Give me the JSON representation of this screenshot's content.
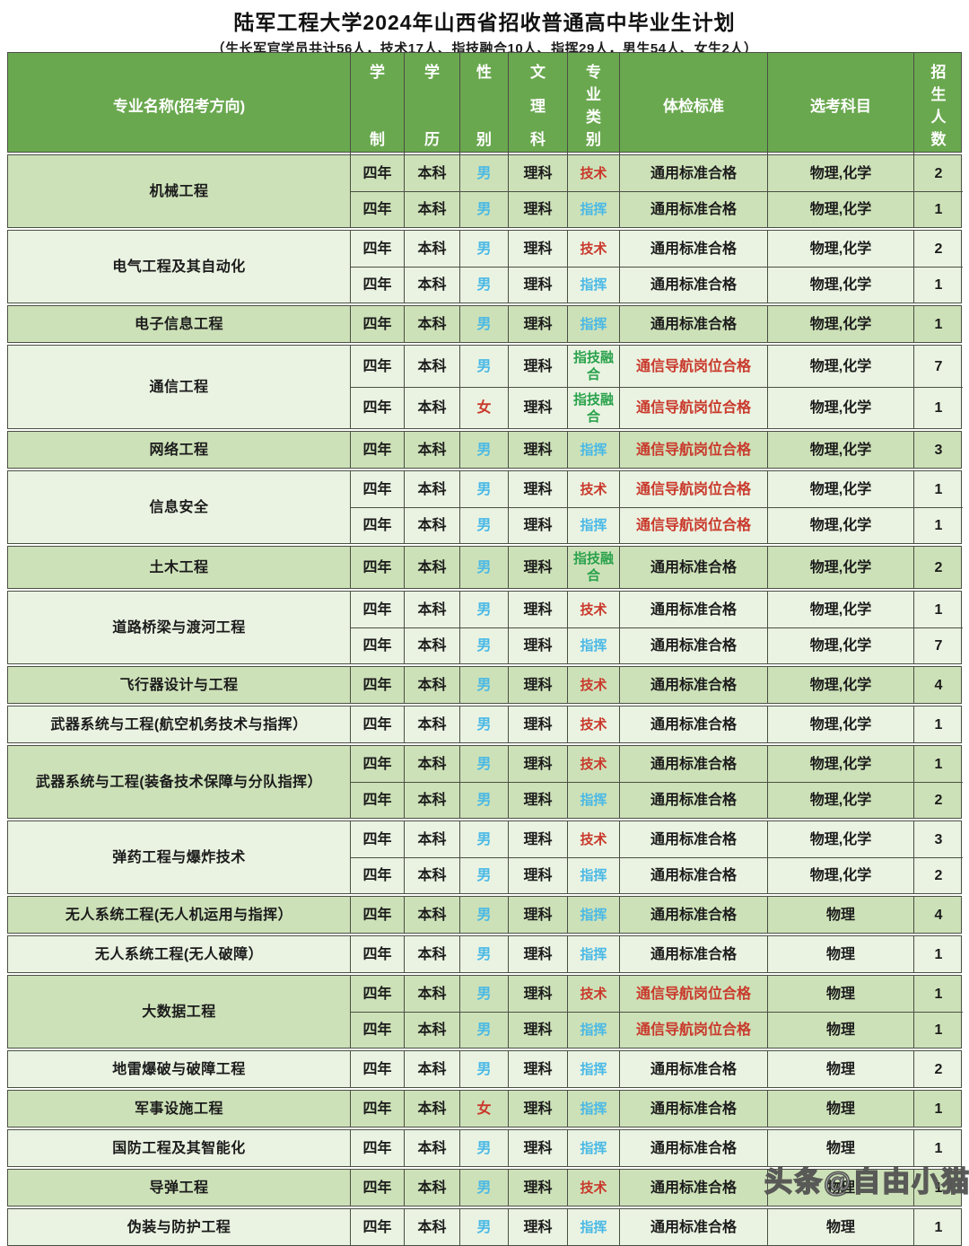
{
  "title": "陆军工程大学2024年山西省招收普通高中毕业生计划",
  "subtitle": "（生长军官学员共计56人，技术17人、指技融合10人、指挥29人，男生54人、女生2人）",
  "watermark": "头条@自由小猫",
  "header": {
    "major": "专业名称(招考方向)",
    "duration": "学制",
    "degree": "学历",
    "gender": "性别",
    "track": "文理科",
    "category": "专业类别",
    "medical": "体检标准",
    "subjects": "选考科目",
    "count": "招生人数"
  },
  "colors": {
    "header_bg": "#6aa84f",
    "row_dark": "#cde1b8",
    "row_light": "#eaf3e2",
    "male_blue": "#4ab9e6",
    "female_red": "#c9392c",
    "tech_red": "#c9392c",
    "command_blue": "#4ab9e6",
    "fusion_green": "#2aa24c",
    "special_medical_red": "#c9392c"
  },
  "groups": [
    {
      "major": "机械工程",
      "rows": [
        {
          "duration": "四年",
          "degree": "本科",
          "gender": "男",
          "track": "理科",
          "category": "技术",
          "medical": "通用标准合格",
          "subjects": "物理,化学",
          "count": "2"
        },
        {
          "duration": "四年",
          "degree": "本科",
          "gender": "男",
          "track": "理科",
          "category": "指挥",
          "medical": "通用标准合格",
          "subjects": "物理,化学",
          "count": "1"
        }
      ]
    },
    {
      "major": "电气工程及其自动化",
      "rows": [
        {
          "duration": "四年",
          "degree": "本科",
          "gender": "男",
          "track": "理科",
          "category": "技术",
          "medical": "通用标准合格",
          "subjects": "物理,化学",
          "count": "2"
        },
        {
          "duration": "四年",
          "degree": "本科",
          "gender": "男",
          "track": "理科",
          "category": "指挥",
          "medical": "通用标准合格",
          "subjects": "物理,化学",
          "count": "1"
        }
      ]
    },
    {
      "major": "电子信息工程",
      "rows": [
        {
          "duration": "四年",
          "degree": "本科",
          "gender": "男",
          "track": "理科",
          "category": "指挥",
          "medical": "通用标准合格",
          "subjects": "物理,化学",
          "count": "1"
        }
      ]
    },
    {
      "major": "通信工程",
      "rows": [
        {
          "duration": "四年",
          "degree": "本科",
          "gender": "男",
          "track": "理科",
          "category": "指技融合",
          "medical": "通信导航岗位合格",
          "subjects": "物理,化学",
          "count": "7"
        },
        {
          "duration": "四年",
          "degree": "本科",
          "gender": "女",
          "track": "理科",
          "category": "指技融合",
          "medical": "通信导航岗位合格",
          "subjects": "物理,化学",
          "count": "1"
        }
      ]
    },
    {
      "major": "网络工程",
      "rows": [
        {
          "duration": "四年",
          "degree": "本科",
          "gender": "男",
          "track": "理科",
          "category": "指挥",
          "medical": "通信导航岗位合格",
          "subjects": "物理,化学",
          "count": "3"
        }
      ]
    },
    {
      "major": "信息安全",
      "rows": [
        {
          "duration": "四年",
          "degree": "本科",
          "gender": "男",
          "track": "理科",
          "category": "技术",
          "medical": "通信导航岗位合格",
          "subjects": "物理,化学",
          "count": "1"
        },
        {
          "duration": "四年",
          "degree": "本科",
          "gender": "男",
          "track": "理科",
          "category": "指挥",
          "medical": "通信导航岗位合格",
          "subjects": "物理,化学",
          "count": "1"
        }
      ]
    },
    {
      "major": "土木工程",
      "rows": [
        {
          "duration": "四年",
          "degree": "本科",
          "gender": "男",
          "track": "理科",
          "category": "指技融合",
          "medical": "通用标准合格",
          "subjects": "物理,化学",
          "count": "2"
        }
      ]
    },
    {
      "major": "道路桥梁与渡河工程",
      "rows": [
        {
          "duration": "四年",
          "degree": "本科",
          "gender": "男",
          "track": "理科",
          "category": "技术",
          "medical": "通用标准合格",
          "subjects": "物理,化学",
          "count": "1"
        },
        {
          "duration": "四年",
          "degree": "本科",
          "gender": "男",
          "track": "理科",
          "category": "指挥",
          "medical": "通用标准合格",
          "subjects": "物理,化学",
          "count": "7"
        }
      ]
    },
    {
      "major": "飞行器设计与工程",
      "rows": [
        {
          "duration": "四年",
          "degree": "本科",
          "gender": "男",
          "track": "理科",
          "category": "技术",
          "medical": "通用标准合格",
          "subjects": "物理,化学",
          "count": "4"
        }
      ]
    },
    {
      "major": "武器系统与工程(航空机务技术与指挥）",
      "rows": [
        {
          "duration": "四年",
          "degree": "本科",
          "gender": "男",
          "track": "理科",
          "category": "技术",
          "medical": "通用标准合格",
          "subjects": "物理,化学",
          "count": "1"
        }
      ]
    },
    {
      "major": "武器系统与工程(装备技术保障与分队指挥）",
      "rows": [
        {
          "duration": "四年",
          "degree": "本科",
          "gender": "男",
          "track": "理科",
          "category": "技术",
          "medical": "通用标准合格",
          "subjects": "物理,化学",
          "count": "1"
        },
        {
          "duration": "四年",
          "degree": "本科",
          "gender": "男",
          "track": "理科",
          "category": "指挥",
          "medical": "通用标准合格",
          "subjects": "物理,化学",
          "count": "2"
        }
      ]
    },
    {
      "major": "弹药工程与爆炸技术",
      "rows": [
        {
          "duration": "四年",
          "degree": "本科",
          "gender": "男",
          "track": "理科",
          "category": "技术",
          "medical": "通用标准合格",
          "subjects": "物理,化学",
          "count": "3"
        },
        {
          "duration": "四年",
          "degree": "本科",
          "gender": "男",
          "track": "理科",
          "category": "指挥",
          "medical": "通用标准合格",
          "subjects": "物理,化学",
          "count": "2"
        }
      ]
    },
    {
      "major": "无人系统工程(无人机运用与指挥）",
      "rows": [
        {
          "duration": "四年",
          "degree": "本科",
          "gender": "男",
          "track": "理科",
          "category": "指挥",
          "medical": "通用标准合格",
          "subjects": "物理",
          "count": "4"
        }
      ]
    },
    {
      "major": "无人系统工程(无人破障）",
      "rows": [
        {
          "duration": "四年",
          "degree": "本科",
          "gender": "男",
          "track": "理科",
          "category": "指挥",
          "medical": "通用标准合格",
          "subjects": "物理",
          "count": "1"
        }
      ]
    },
    {
      "major": "大数据工程",
      "rows": [
        {
          "duration": "四年",
          "degree": "本科",
          "gender": "男",
          "track": "理科",
          "category": "技术",
          "medical": "通信导航岗位合格",
          "subjects": "物理",
          "count": "1"
        },
        {
          "duration": "四年",
          "degree": "本科",
          "gender": "男",
          "track": "理科",
          "category": "指挥",
          "medical": "通信导航岗位合格",
          "subjects": "物理",
          "count": "1"
        }
      ]
    },
    {
      "major": "地雷爆破与破障工程",
      "rows": [
        {
          "duration": "四年",
          "degree": "本科",
          "gender": "男",
          "track": "理科",
          "category": "指挥",
          "medical": "通用标准合格",
          "subjects": "物理",
          "count": "2"
        }
      ]
    },
    {
      "major": "军事设施工程",
      "rows": [
        {
          "duration": "四年",
          "degree": "本科",
          "gender": "女",
          "track": "理科",
          "category": "指挥",
          "medical": "通用标准合格",
          "subjects": "物理",
          "count": "1"
        }
      ]
    },
    {
      "major": "国防工程及其智能化",
      "rows": [
        {
          "duration": "四年",
          "degree": "本科",
          "gender": "男",
          "track": "理科",
          "category": "指挥",
          "medical": "通用标准合格",
          "subjects": "物理",
          "count": "1"
        }
      ]
    },
    {
      "major": "导弹工程",
      "rows": [
        {
          "duration": "四年",
          "degree": "本科",
          "gender": "男",
          "track": "理科",
          "category": "技术",
          "medical": "通用标准合格",
          "subjects": "物理",
          "count": "1"
        }
      ]
    },
    {
      "major": "伪装与防护工程",
      "rows": [
        {
          "duration": "四年",
          "degree": "本科",
          "gender": "男",
          "track": "理科",
          "category": "指挥",
          "medical": "通用标准合格",
          "subjects": "物理",
          "count": "1"
        }
      ]
    }
  ]
}
